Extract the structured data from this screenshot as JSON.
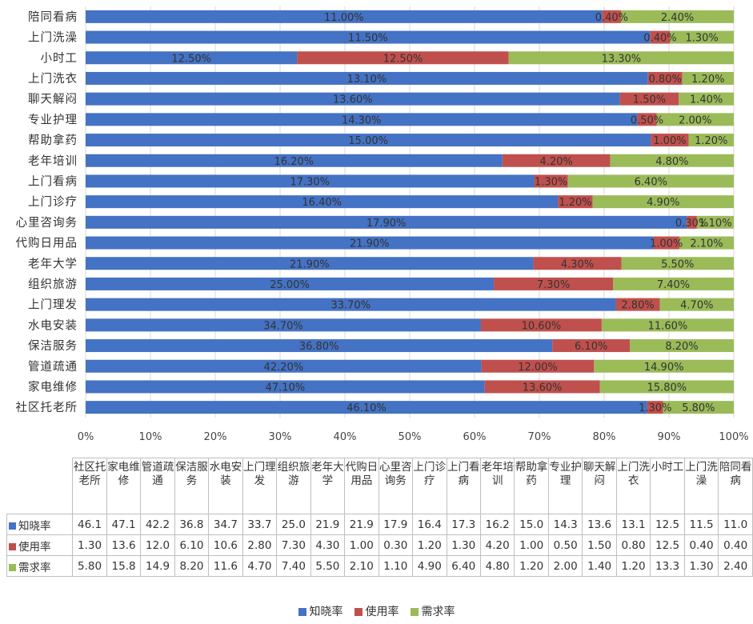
{
  "colors": {
    "aware": "#4472C4",
    "use": "#C0504D",
    "demand": "#9BBB59"
  },
  "chart_data": {
    "type": "bar",
    "orientation": "horizontal",
    "stacked": "percent",
    "categories": [
      "社区托老所",
      "家电维修",
      "管道疏通",
      "保洁服务",
      "水电安装",
      "上门理发",
      "组织旅游",
      "老年大学",
      "代购日用品",
      "心里咨询务",
      "上门诊疗",
      "上门看病",
      "老年培训",
      "帮助拿药",
      "专业护理",
      "聊天解闷",
      "上门洗衣",
      "小时工",
      "上门洗澡",
      "陪同看病"
    ],
    "table_headers": [
      "社区托老所",
      "家电维修",
      "管道疏通",
      "保洁服务",
      "水电安装",
      "上门理发",
      "组织旅游",
      "老年大学",
      "代购日用品",
      "心里咨询务",
      "上门诊疗",
      "上门看病",
      "老年培训",
      "帮助拿药",
      "专业护理",
      "聊天解闷",
      "上门洗衣",
      "小时工",
      "上门洗澡",
      "陪同看病"
    ],
    "series": [
      {
        "name": "知晓率",
        "color": "#4472C4",
        "values": [
          46.1,
          47.1,
          42.2,
          36.8,
          34.7,
          33.7,
          25.0,
          21.9,
          21.9,
          17.9,
          16.4,
          17.3,
          16.2,
          15.0,
          14.3,
          13.6,
          13.1,
          12.5,
          11.5,
          11.0
        ],
        "labels": [
          "46.10%",
          "47.10%",
          "42.20%",
          "36.80%",
          "34.70%",
          "33.70%",
          "25.00%",
          "21.90%",
          "21.90%",
          "17.90%",
          "16.40%",
          "17.30%",
          "16.20%",
          "15.00%",
          "14.30%",
          "13.60%",
          "13.10%",
          "12.50%",
          "11.50%",
          "11.00%"
        ],
        "table_values": [
          "46.1",
          "47.1",
          "42.2",
          "36.8",
          "34.7",
          "33.7",
          "25.0",
          "21.9",
          "21.9",
          "17.9",
          "16.4",
          "17.3",
          "16.2",
          "15.0",
          "14.3",
          "13.6",
          "13.1",
          "12.5",
          "11.5",
          "11.0"
        ]
      },
      {
        "name": "使用率",
        "color": "#C0504D",
        "values": [
          1.3,
          13.6,
          12.0,
          6.1,
          10.6,
          2.8,
          7.3,
          4.3,
          1.0,
          0.3,
          1.2,
          1.3,
          4.2,
          1.0,
          0.5,
          1.5,
          0.8,
          12.5,
          0.4,
          0.4
        ],
        "labels": [
          "1.30%",
          "13.60%",
          "12.00%",
          "6.10%",
          "10.60%",
          "2.80%",
          "7.30%",
          "4.30%",
          "1.00%",
          "0.30%",
          "1.20%",
          "1.30%",
          "4.20%",
          "1.00%",
          "0.50%",
          "1.50%",
          "0.80%",
          "12.50%",
          "0.40%",
          "0.40%"
        ],
        "table_values": [
          "1.30",
          "13.6",
          "12.0",
          "6.10",
          "10.6",
          "2.80",
          "7.30",
          "4.30",
          "1.00",
          "0.30",
          "1.20",
          "1.30",
          "4.20",
          "1.00",
          "0.50",
          "1.50",
          "0.80",
          "12.5",
          "0.40",
          "0.40"
        ]
      },
      {
        "name": "需求率",
        "color": "#9BBB59",
        "values": [
          5.8,
          15.8,
          14.9,
          8.2,
          11.6,
          4.7,
          7.4,
          5.5,
          2.1,
          1.1,
          4.9,
          6.4,
          4.8,
          1.2,
          2.0,
          1.4,
          1.2,
          13.3,
          1.3,
          2.4
        ],
        "labels": [
          "5.80%",
          "15.80%",
          "14.90%",
          "8.20%",
          "11.60%",
          "4.70%",
          "7.40%",
          "5.50%",
          "2.10%",
          "1.10%",
          "4.90%",
          "6.40%",
          "4.80%",
          "1.20%",
          "2.00%",
          "1.40%",
          "1.20%",
          "13.30%",
          "1.30%",
          "2.40%"
        ],
        "table_values": [
          "5.80",
          "15.8",
          "14.9",
          "8.20",
          "11.6",
          "4.70",
          "7.40",
          "5.50",
          "2.10",
          "1.10",
          "4.90",
          "6.40",
          "4.80",
          "1.20",
          "2.00",
          "1.40",
          "1.20",
          "13.3",
          "1.30",
          "2.40"
        ]
      }
    ],
    "x_ticks": [
      "0%",
      "10%",
      "20%",
      "30%",
      "40%",
      "50%",
      "60%",
      "70%",
      "80%",
      "90%",
      "100%"
    ],
    "xlim": [
      0,
      100
    ],
    "legend_position": "bottom",
    "data_table": true
  }
}
